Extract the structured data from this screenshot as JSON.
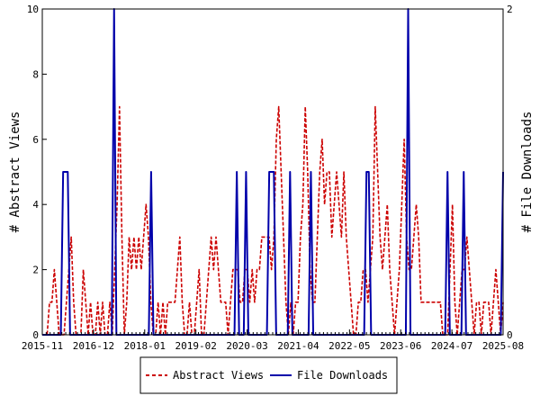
{
  "chart_data": {
    "type": "line",
    "x_tick_labels": [
      "2015-11",
      "2016-12",
      "2018-01",
      "2019-02",
      "2020-03",
      "2021-04",
      "2022-05",
      "2023-06",
      "2024-07",
      "2025-08"
    ],
    "y_left": {
      "label": "# Abstract Views",
      "ylim": [
        0,
        10
      ],
      "ticks": [
        "0",
        "2",
        "4",
        "6",
        "8",
        "10"
      ]
    },
    "y_right": {
      "label": "# File Downloads",
      "ylim": [
        0,
        2
      ],
      "ticks": [
        "0",
        "2"
      ]
    },
    "grid": false,
    "legend": {
      "placement": "bottom-center"
    },
    "series": [
      {
        "name": "Abstract Views",
        "axis": "left",
        "color": "#cc0000",
        "style": "dashed",
        "values": [
          0,
          0,
          0,
          1,
          1,
          2,
          1,
          0,
          0,
          0,
          1,
          2,
          3,
          1,
          0,
          0,
          0,
          2,
          1,
          0,
          1,
          0,
          0,
          1,
          0,
          1,
          0,
          0,
          1,
          0,
          2,
          4,
          7,
          3,
          0,
          1,
          3,
          2,
          3,
          2,
          3,
          2,
          3,
          4,
          3,
          1,
          0,
          0,
          1,
          0,
          1,
          0,
          1,
          1,
          1,
          1,
          2,
          3,
          1,
          0,
          0,
          1,
          0,
          0,
          1,
          2,
          0,
          0,
          1,
          2,
          3,
          2,
          3,
          2,
          1,
          1,
          1,
          0,
          1,
          2,
          2,
          2,
          1,
          1,
          2,
          2,
          1,
          2,
          1,
          2,
          2,
          3,
          3,
          3,
          3,
          2,
          3,
          6,
          7,
          5,
          3,
          1,
          0,
          1,
          0,
          1,
          1,
          3,
          4,
          7,
          5,
          2,
          1,
          1,
          3,
          5,
          6,
          4,
          5,
          5,
          3,
          4,
          5,
          4,
          3,
          5,
          3,
          2,
          1,
          0,
          0,
          1,
          1,
          2,
          2,
          1,
          2,
          3,
          7,
          5,
          3,
          2,
          3,
          4,
          2,
          1,
          0,
          1,
          2,
          4,
          6,
          3,
          2,
          2,
          3,
          4,
          3,
          1,
          1,
          1,
          1,
          1,
          1,
          1,
          1,
          1,
          0,
          0,
          0,
          2,
          4,
          1,
          0,
          1,
          2,
          2,
          3,
          2,
          1,
          0,
          1,
          1,
          0,
          1,
          1,
          1,
          0,
          1,
          2,
          1,
          0,
          1
        ]
      },
      {
        "name": "File Downloads",
        "axis": "right",
        "color": "#0000aa",
        "style": "solid",
        "values": [
          0,
          0,
          0,
          0,
          0,
          0,
          0,
          0,
          0,
          1,
          1,
          1,
          0,
          0,
          0,
          0,
          0,
          0,
          0,
          0,
          0,
          0,
          0,
          0,
          0,
          0,
          0,
          0,
          0,
          0,
          0,
          2,
          0,
          0,
          0,
          0,
          0,
          0,
          0,
          0,
          0,
          0,
          0,
          0,
          0,
          0,
          0,
          1,
          0,
          0,
          0,
          0,
          0,
          0,
          0,
          0,
          0,
          0,
          0,
          0,
          0,
          0,
          0,
          0,
          0,
          0,
          0,
          0,
          0,
          0,
          0,
          0,
          0,
          0,
          0,
          0,
          0,
          0,
          0,
          0,
          0,
          0,
          0,
          0,
          1,
          0,
          0,
          0,
          1,
          0,
          0,
          0,
          0,
          0,
          0,
          0,
          0,
          0,
          1,
          1,
          1,
          0,
          0,
          0,
          0,
          0,
          0,
          1,
          0,
          0,
          0,
          0,
          0,
          0,
          0,
          0,
          1,
          0,
          0,
          0,
          0,
          0,
          0,
          0,
          0,
          0,
          0,
          0,
          0,
          0,
          0,
          0,
          0,
          0,
          0,
          0,
          0,
          0,
          0,
          0,
          1,
          1,
          0,
          0,
          0,
          0,
          0,
          0,
          0,
          0,
          0,
          0,
          0,
          0,
          0,
          0,
          0,
          0,
          2,
          0,
          0,
          0,
          0,
          0,
          0,
          0,
          0,
          0,
          0,
          0,
          0,
          0,
          0,
          0,
          0,
          1,
          0,
          0,
          0,
          0,
          0,
          0,
          1,
          0,
          0,
          0,
          0,
          0,
          0,
          0,
          0,
          0,
          0,
          0,
          0,
          0,
          0,
          0,
          0,
          1
        ]
      }
    ]
  }
}
